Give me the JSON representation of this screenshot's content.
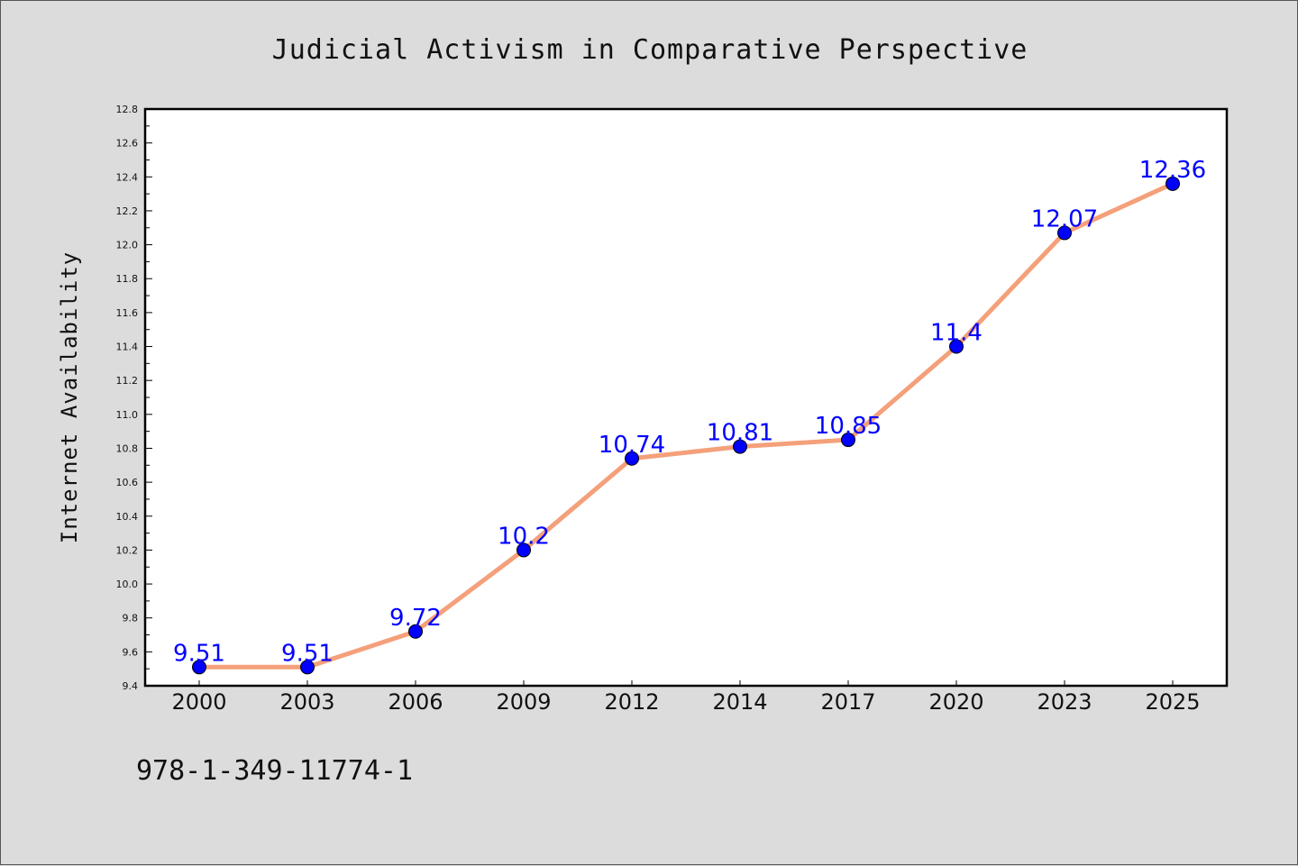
{
  "chart_data": {
    "type": "line",
    "title": "Judicial Activism in Comparative Perspective",
    "xlabel": "",
    "ylabel": "Internet Availability",
    "categories": [
      "2000",
      "2003",
      "2006",
      "2009",
      "2012",
      "2014",
      "2017",
      "2020",
      "2023",
      "2025"
    ],
    "values": [
      9.51,
      9.51,
      9.72,
      10.2,
      10.74,
      10.81,
      10.85,
      11.4,
      12.07,
      12.36
    ],
    "data_labels": [
      "9.51",
      "9.51",
      "9.72",
      "10.2",
      "10.74",
      "10.81",
      "10.85",
      "11.4",
      "12.07",
      "12.36"
    ],
    "ylim": [
      9.4,
      12.8
    ],
    "yticks": [
      "9.4",
      "9.6",
      "9.8",
      "10.0",
      "10.2",
      "10.4",
      "10.6",
      "10.8",
      "11.0",
      "11.2",
      "11.4",
      "11.6",
      "11.8",
      "12.0",
      "12.2",
      "12.4",
      "12.6",
      "12.8"
    ],
    "grid": false,
    "legend": "none",
    "colors": {
      "line": "#f4a07a",
      "marker": "#0000ff",
      "label": "#0000ff",
      "background": "#dcdcdc",
      "plot_background": "#ffffff"
    }
  },
  "footer_code": "978-1-349-11774-1"
}
